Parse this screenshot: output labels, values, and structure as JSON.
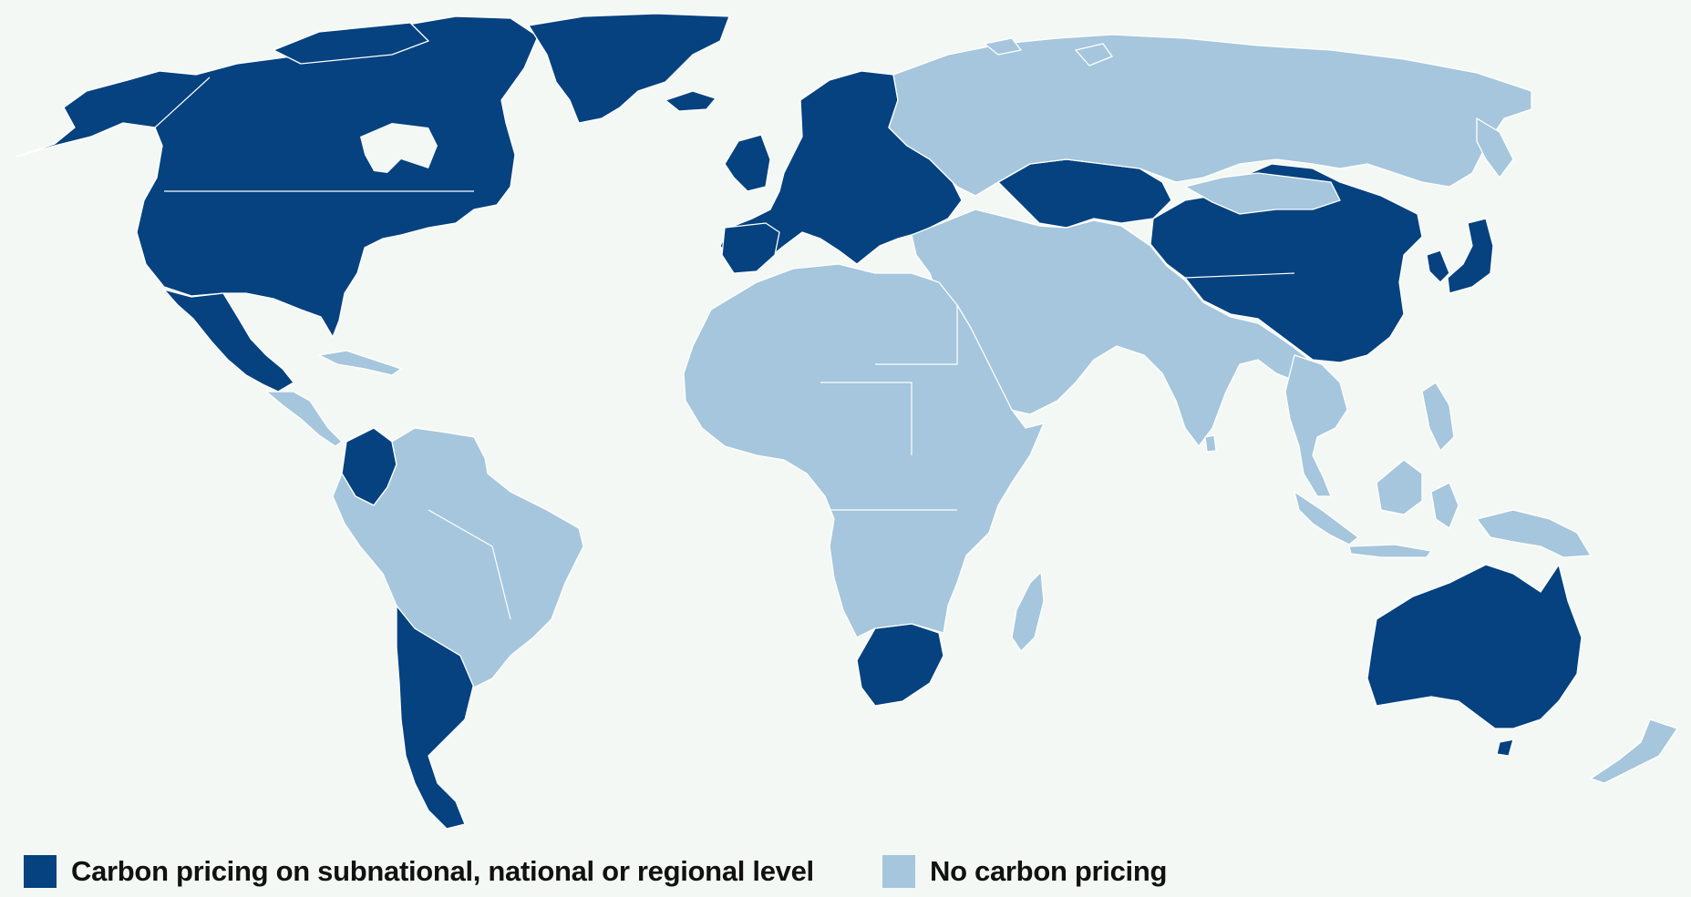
{
  "map": {
    "colors": {
      "carbon_pricing": "#05427f",
      "no_carbon_pricing": "#a5c6dc",
      "ocean": "#f3f8f5",
      "border": "#ffffff"
    }
  },
  "legend": {
    "items": [
      {
        "label": "Carbon pricing on subnational, national or regional level",
        "color": "#05427f"
      },
      {
        "label": "No carbon pricing",
        "color": "#a5c6dc"
      }
    ]
  }
}
